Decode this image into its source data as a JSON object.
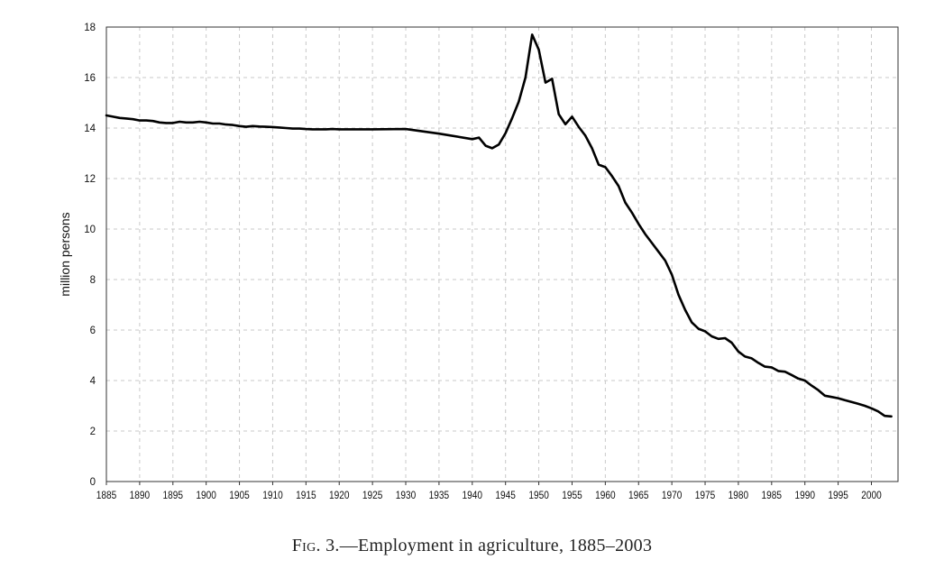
{
  "chart_data": {
    "type": "line",
    "title": "",
    "caption_prefix": "Fig. 3.",
    "caption_text": "—Employment in agriculture, 1885–2003",
    "xlabel": "",
    "ylabel": "million persons",
    "xlim": [
      1885,
      2004
    ],
    "ylim": [
      0,
      18
    ],
    "grid": true,
    "xticks": [
      1885,
      1890,
      1895,
      1900,
      1905,
      1910,
      1915,
      1920,
      1925,
      1930,
      1935,
      1940,
      1945,
      1950,
      1955,
      1960,
      1965,
      1970,
      1975,
      1980,
      1985,
      1990,
      1995,
      2000
    ],
    "yticks": [
      0,
      2,
      4,
      6,
      8,
      10,
      12,
      14,
      16,
      18
    ],
    "series": [
      {
        "name": "Employment in agriculture",
        "color": "#000000",
        "x": [
          1885,
          1886,
          1887,
          1888,
          1889,
          1890,
          1891,
          1892,
          1893,
          1894,
          1895,
          1896,
          1897,
          1898,
          1899,
          1900,
          1901,
          1902,
          1903,
          1904,
          1905,
          1906,
          1907,
          1908,
          1909,
          1910,
          1911,
          1912,
          1913,
          1914,
          1915,
          1916,
          1917,
          1918,
          1919,
          1920,
          1925,
          1930,
          1935,
          1940,
          1941,
          1942,
          1943,
          1944,
          1945,
          1946,
          1947,
          1948,
          1949,
          1950,
          1951,
          1952,
          1953,
          1954,
          1955,
          1956,
          1957,
          1958,
          1959,
          1960,
          1961,
          1962,
          1963,
          1964,
          1965,
          1966,
          1967,
          1968,
          1969,
          1970,
          1971,
          1972,
          1973,
          1974,
          1975,
          1976,
          1977,
          1978,
          1979,
          1980,
          1981,
          1982,
          1983,
          1984,
          1985,
          1986,
          1987,
          1988,
          1989,
          1990,
          1991,
          1992,
          1993,
          1994,
          1995,
          1996,
          1997,
          1998,
          1999,
          2000,
          2001,
          2002,
          2003
        ],
        "y": [
          14.5,
          14.45,
          14.4,
          14.38,
          14.35,
          14.3,
          14.3,
          14.28,
          14.22,
          14.2,
          14.2,
          14.25,
          14.22,
          14.22,
          14.25,
          14.22,
          14.18,
          14.18,
          14.14,
          14.12,
          14.08,
          14.05,
          14.08,
          14.06,
          14.05,
          14.04,
          14.02,
          14.0,
          13.98,
          13.98,
          13.96,
          13.95,
          13.95,
          13.95,
          13.96,
          13.95,
          13.95,
          13.96,
          13.78,
          13.56,
          13.62,
          13.3,
          13.2,
          13.35,
          13.8,
          14.4,
          15.05,
          16.0,
          17.7,
          17.1,
          15.8,
          15.95,
          14.55,
          14.15,
          14.45,
          14.05,
          13.7,
          13.2,
          12.55,
          12.45,
          12.1,
          11.7,
          11.05,
          10.65,
          10.2,
          9.8,
          9.45,
          9.1,
          8.75,
          8.2,
          7.4,
          6.8,
          6.3,
          6.05,
          5.95,
          5.75,
          5.65,
          5.68,
          5.5,
          5.15,
          4.95,
          4.88,
          4.7,
          4.55,
          4.52,
          4.38,
          4.35,
          4.22,
          4.08,
          4.0,
          3.8,
          3.62,
          3.4,
          3.35,
          3.3,
          3.22,
          3.15,
          3.08,
          3.0,
          2.9,
          2.78,
          2.6,
          2.58
        ]
      }
    ]
  }
}
